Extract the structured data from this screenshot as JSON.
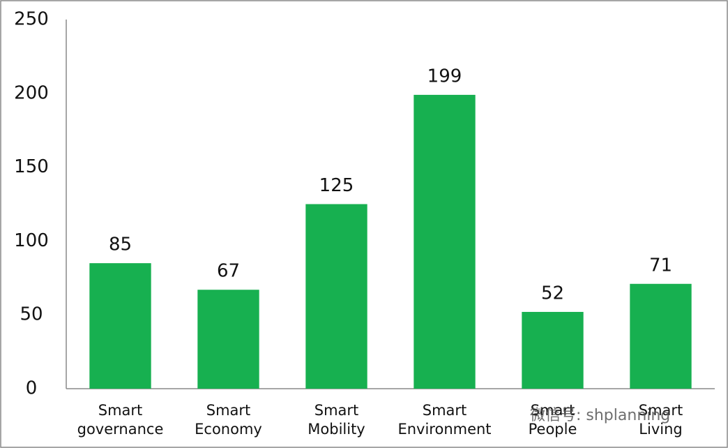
{
  "chart_data": {
    "type": "bar",
    "categories": [
      "Smart governance",
      "Smart Economy",
      "Smart Mobility",
      "Smart Environment",
      "Smart People",
      "Smart Living"
    ],
    "values": [
      85,
      67,
      125,
      199,
      52,
      71
    ],
    "color": "#17b050",
    "ylim": [
      0,
      250
    ],
    "yticks": [
      0,
      50,
      100,
      150,
      200,
      250
    ],
    "grid": false,
    "watermark": "微信号: shplanning"
  }
}
